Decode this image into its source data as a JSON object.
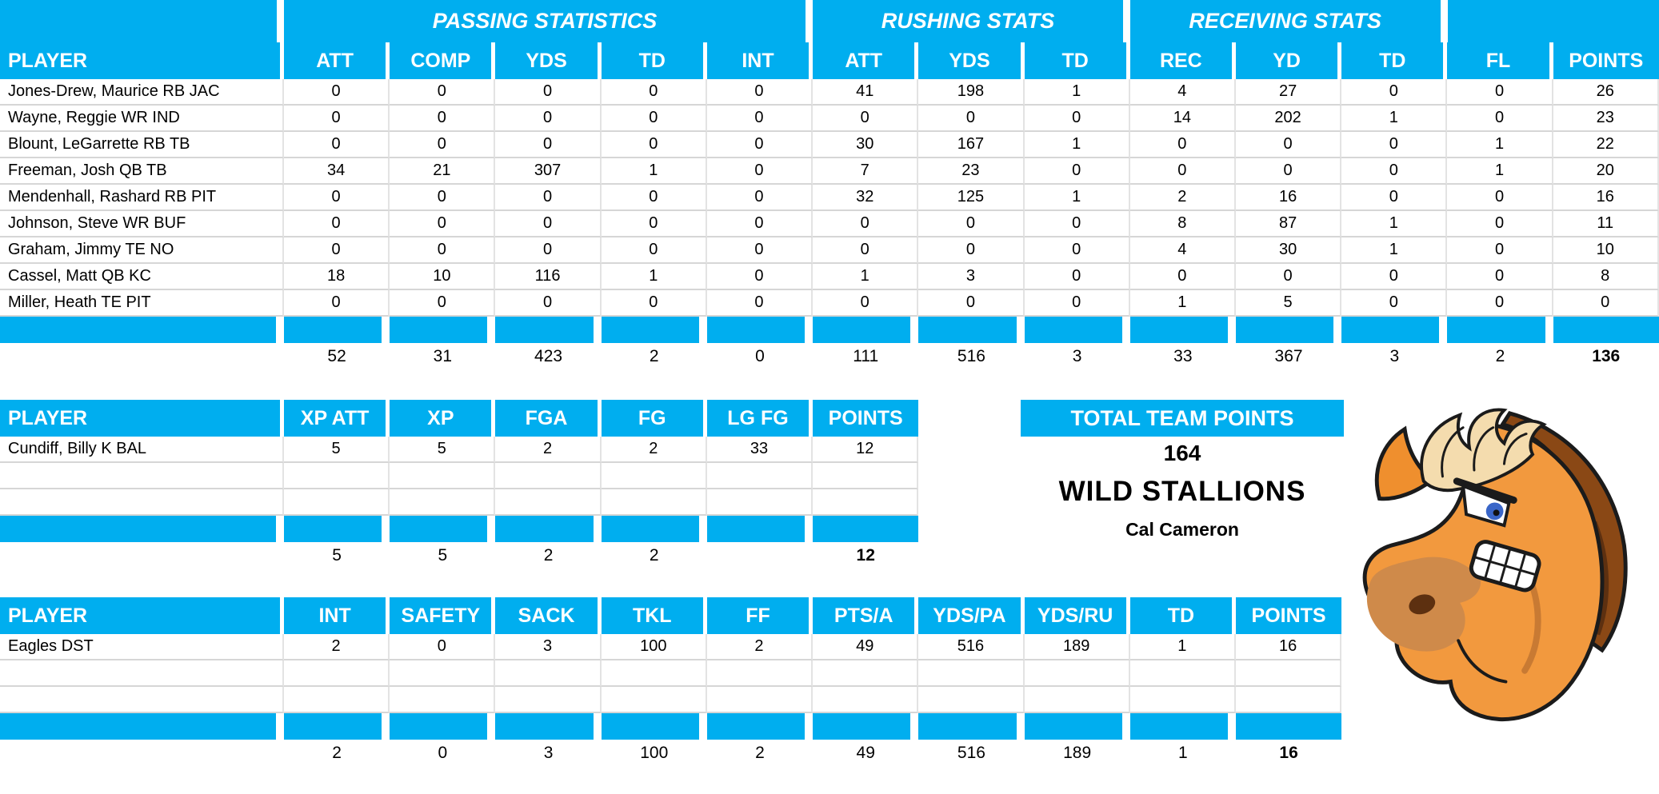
{
  "colors": {
    "header_blue": "#00AEEF",
    "grid_horizontal": "#d6d6d6",
    "grid_vertical": "#e3e3e3",
    "header_text": "#FFFFFF",
    "body_text": "#000000"
  },
  "tables": {
    "offense": {
      "group_headers": [
        {
          "label": "",
          "span": 1
        },
        {
          "label": "PASSING STATISTICS",
          "span": 5
        },
        {
          "label": "RUSHING STATS",
          "span": 3
        },
        {
          "label": "RECEIVING STATS",
          "span": 3
        },
        {
          "label": "",
          "span": 2
        }
      ],
      "columns": [
        "PLAYER",
        "ATT",
        "COMP",
        "YDS",
        "TD",
        "INT",
        "ATT",
        "YDS",
        "TD",
        "REC",
        "YD",
        "TD",
        "FL",
        "POINTS"
      ],
      "rows": [
        [
          "Jones-Drew, Maurice RB JAC",
          "0",
          "0",
          "0",
          "0",
          "0",
          "41",
          "198",
          "1",
          "4",
          "27",
          "0",
          "0",
          "26"
        ],
        [
          "Wayne, Reggie WR IND",
          "0",
          "0",
          "0",
          "0",
          "0",
          "0",
          "0",
          "0",
          "14",
          "202",
          "1",
          "0",
          "23"
        ],
        [
          "Blount, LeGarrette RB TB",
          "0",
          "0",
          "0",
          "0",
          "0",
          "30",
          "167",
          "1",
          "0",
          "0",
          "0",
          "1",
          "22"
        ],
        [
          "Freeman, Josh QB TB",
          "34",
          "21",
          "307",
          "1",
          "0",
          "7",
          "23",
          "0",
          "0",
          "0",
          "0",
          "1",
          "20"
        ],
        [
          "Mendenhall, Rashard RB PIT",
          "0",
          "0",
          "0",
          "0",
          "0",
          "32",
          "125",
          "1",
          "2",
          "16",
          "0",
          "0",
          "16"
        ],
        [
          "Johnson, Steve WR BUF",
          "0",
          "0",
          "0",
          "0",
          "0",
          "0",
          "0",
          "0",
          "8",
          "87",
          "1",
          "0",
          "11"
        ],
        [
          "Graham, Jimmy TE NO",
          "0",
          "0",
          "0",
          "0",
          "0",
          "0",
          "0",
          "0",
          "4",
          "30",
          "1",
          "0",
          "10"
        ],
        [
          "Cassel, Matt QB KC",
          "18",
          "10",
          "116",
          "1",
          "0",
          "1",
          "3",
          "0",
          "0",
          "0",
          "0",
          "0",
          "8"
        ],
        [
          "Miller, Heath TE PIT",
          "0",
          "0",
          "0",
          "0",
          "0",
          "0",
          "0",
          "0",
          "1",
          "5",
          "0",
          "0",
          "0"
        ]
      ],
      "blank_rows": 0,
      "totals": [
        "",
        "52",
        "31",
        "423",
        "2",
        "0",
        "111",
        "516",
        "3",
        "33",
        "367",
        "3",
        "2",
        "136"
      ]
    },
    "kicker": {
      "columns": [
        "PLAYER",
        "XP ATT",
        "XP",
        "FGA",
        "FG",
        "LG FG",
        "POINTS"
      ],
      "rows": [
        [
          "Cundiff, Billy K BAL",
          "5",
          "5",
          "2",
          "2",
          "33",
          "12"
        ]
      ],
      "blank_rows": 2,
      "totals": [
        "",
        "5",
        "5",
        "2",
        "2",
        "",
        "12"
      ]
    },
    "dst": {
      "columns": [
        "PLAYER",
        "INT",
        "SAFETY",
        "SACK",
        "TKL",
        "FF",
        "PTS/A",
        "YDS/PA",
        "YDS/RU",
        "TD",
        "POINTS"
      ],
      "rows": [
        [
          "Eagles DST",
          "2",
          "0",
          "3",
          "100",
          "2",
          "49",
          "516",
          "189",
          "1",
          "16"
        ]
      ],
      "blank_rows": 2,
      "totals": [
        "",
        "2",
        "0",
        "3",
        "100",
        "2",
        "49",
        "516",
        "189",
        "1",
        "16"
      ]
    }
  },
  "team": {
    "points_header": "TOTAL TEAM POINTS",
    "total_points": "164",
    "name": "WILD STALLIONS",
    "owner": "Cal Cameron"
  },
  "mascot": {
    "description": "angry cartoon horse head",
    "body_color": "#f2993e",
    "mane_dark": "#8a4815",
    "mane_light": "#f4dcae",
    "muzzle_color": "#cf8a4a"
  }
}
